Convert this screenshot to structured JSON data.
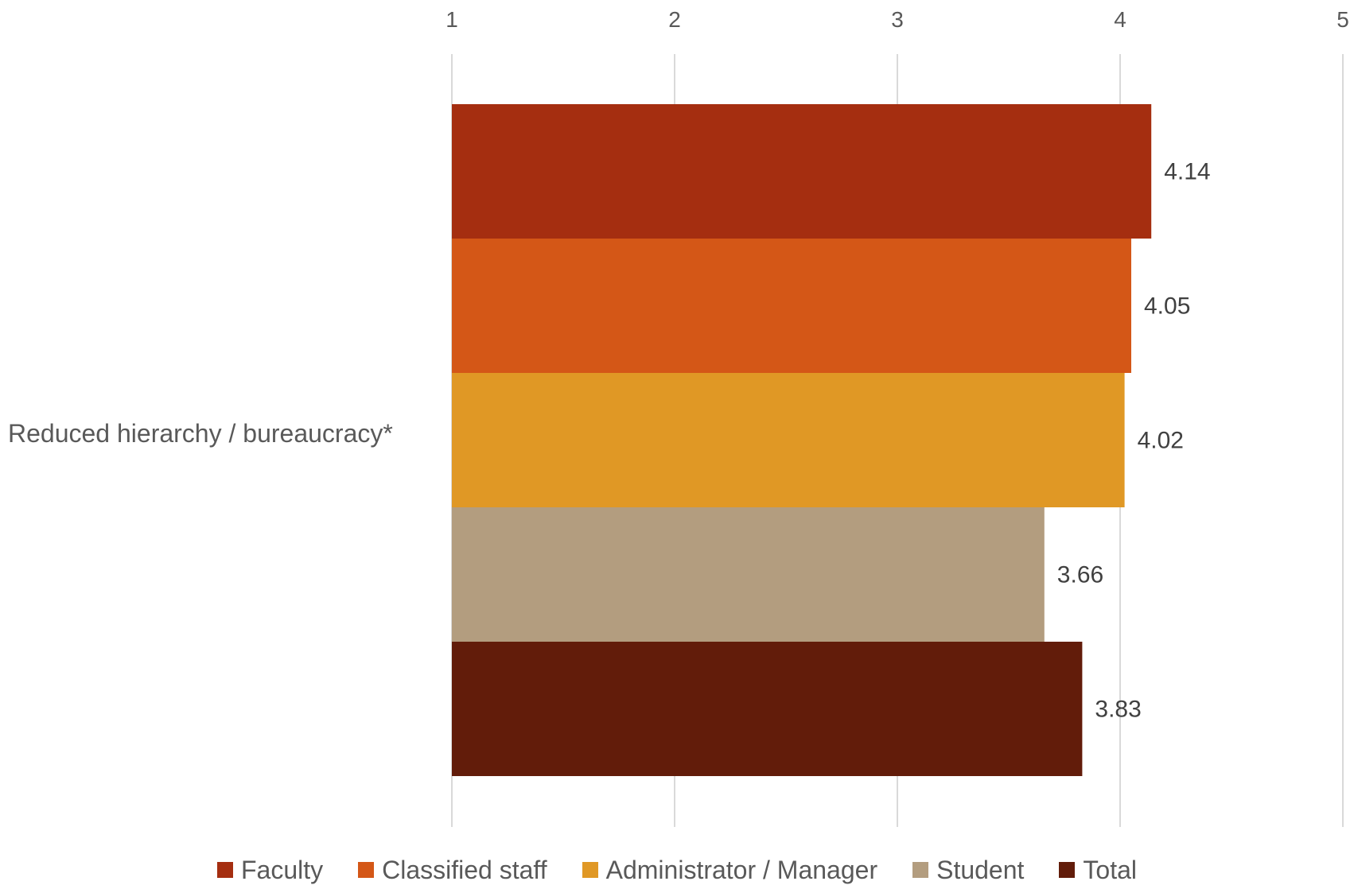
{
  "chart_data": {
    "type": "bar",
    "orientation": "horizontal",
    "categories": [
      "Reduced hierarchy / bureaucracy*"
    ],
    "series": [
      {
        "name": "Faculty",
        "values": [
          4.14
        ],
        "color": "#A52E10"
      },
      {
        "name": "Classified staff",
        "values": [
          4.05
        ],
        "color": "#D45717"
      },
      {
        "name": "Administrator / Manager",
        "values": [
          4.02
        ],
        "color": "#E09825"
      },
      {
        "name": "Student",
        "values": [
          3.66
        ],
        "color": "#B39D7F"
      },
      {
        "name": "Total",
        "values": [
          3.83
        ],
        "color": "#621C0A"
      }
    ],
    "data_labels": [
      "4.14",
      "4.05",
      "4.02",
      "3.66",
      "3.83"
    ],
    "xlim": [
      1,
      5
    ],
    "x_ticks": [
      "1",
      "2",
      "3",
      "4",
      "5"
    ],
    "x_axis_position": "top",
    "grid": true,
    "legend_position": "bottom",
    "title": "",
    "xlabel": "",
    "ylabel": ""
  }
}
